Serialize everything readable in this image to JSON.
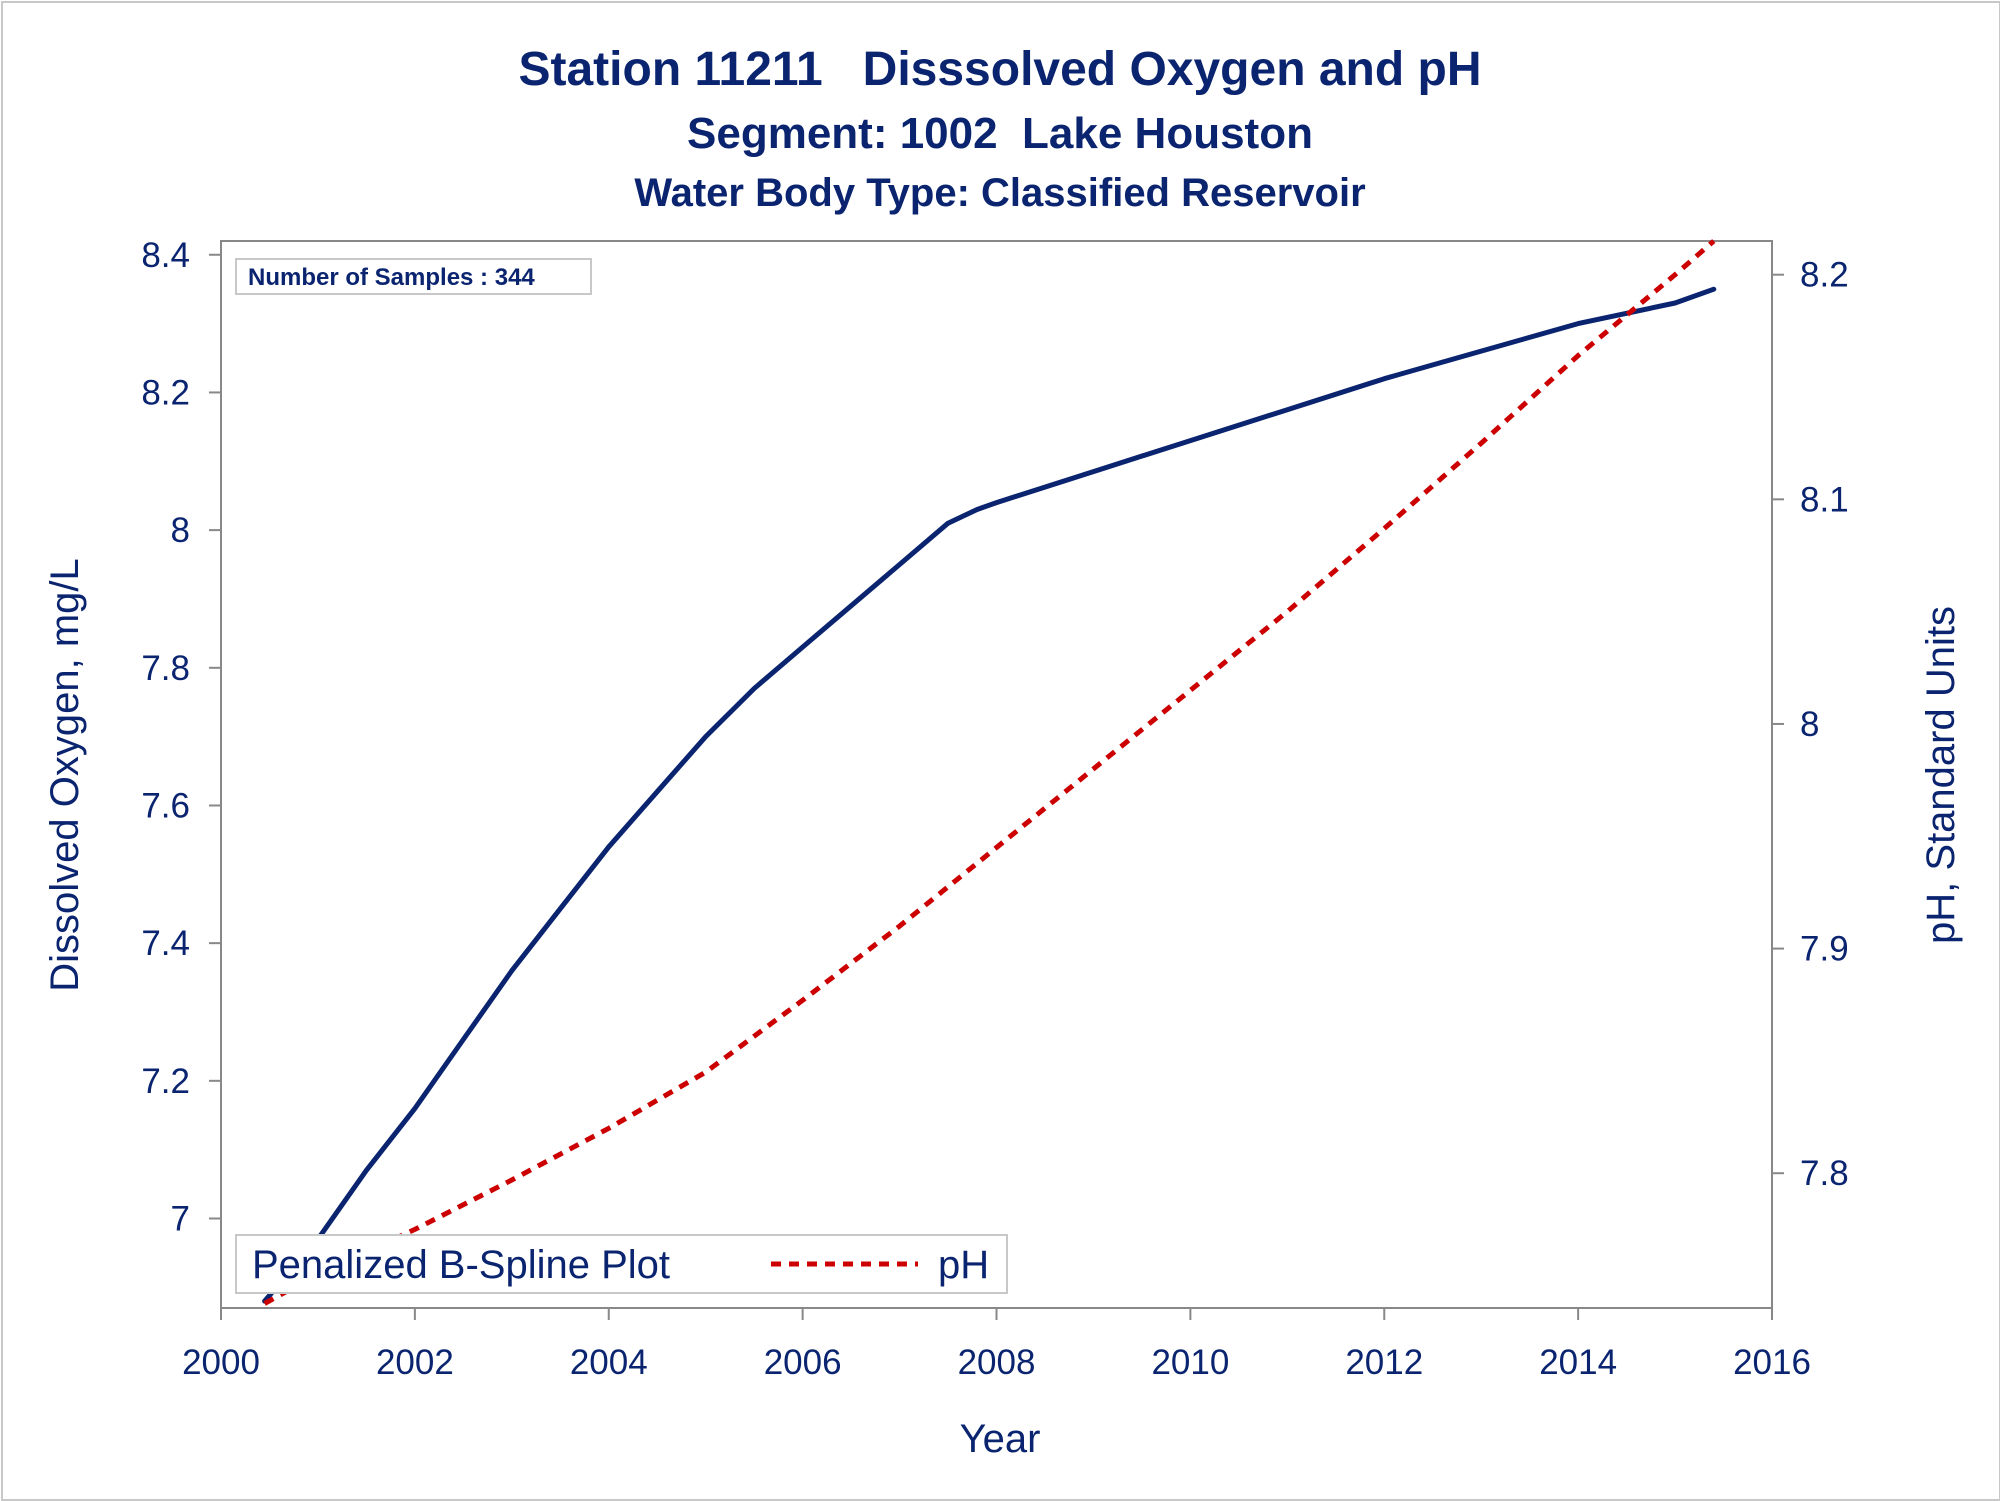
{
  "chart_data": {
    "type": "line",
    "title": "Station 11211   Disssolved Oxygen and pH",
    "subtitle": "Segment: 1002  Lake Houston",
    "subtitle2": "Water Body Type: Classified Reservoir",
    "xlabel": "Year",
    "ylabel": "Dissolved Oxygen, mg/L",
    "y2label": "pH, Standard Units",
    "xlim": [
      2000,
      2016
    ],
    "ylim": [
      6.87,
      8.42
    ],
    "y2lim": [
      7.74,
      8.215
    ],
    "x_ticks": [
      "2000",
      "2002",
      "2004",
      "2006",
      "2008",
      "2010",
      "2012",
      "2014",
      "2016"
    ],
    "y_ticks": [
      "7",
      "7.2",
      "7.4",
      "7.6",
      "7.8",
      "8",
      "8.2",
      "8.4"
    ],
    "y2_ticks": [
      "7.8",
      "7.9",
      "8",
      "8.1",
      "8.2"
    ],
    "inset_text": "Number of Samples : 344",
    "legend": {
      "position": "bottom-left",
      "title": "Penalized B-Spline Plot",
      "entries": [
        "pH"
      ]
    },
    "series": [
      {
        "axis": "left",
        "color": "#0a2470",
        "style": "solid",
        "x": [
          2000.45,
          2001.0,
          2001.5,
          2002.0,
          2002.5,
          2003.0,
          2003.5,
          2004.0,
          2004.5,
          2005.0,
          2005.5,
          2006.0,
          2006.5,
          2007.0,
          2007.5,
          2007.8,
          2008.0,
          2009.0,
          2010.0,
          2011.0,
          2012.0,
          2013.0,
          2014.0,
          2015.0,
          2015.4
        ],
        "y": [
          6.88,
          6.97,
          7.07,
          7.16,
          7.26,
          7.36,
          7.45,
          7.54,
          7.62,
          7.7,
          7.77,
          7.83,
          7.89,
          7.95,
          8.01,
          8.03,
          8.04,
          8.085,
          8.13,
          8.175,
          8.22,
          8.26,
          8.3,
          8.33,
          8.35
        ]
      },
      {
        "name": "pH",
        "axis": "right",
        "color": "#cc0000",
        "style": "dashed",
        "x": [
          2000.45,
          2001.0,
          2002.0,
          2003.0,
          2004.0,
          2005.0,
          2006.0,
          2007.0,
          2008.0,
          2009.0,
          2010.0,
          2011.0,
          2012.0,
          2013.0,
          2014.0,
          2015.0,
          2015.4
        ],
        "y": [
          7.742,
          7.755,
          7.775,
          7.797,
          7.82,
          7.845,
          7.877,
          7.91,
          7.945,
          7.98,
          8.015,
          8.05,
          8.087,
          8.125,
          8.164,
          8.2,
          8.215
        ]
      }
    ]
  },
  "colors": {
    "text": "#0a2470",
    "do_line": "#0a2470",
    "ph_line": "#cc0000",
    "frame": "#888888"
  }
}
